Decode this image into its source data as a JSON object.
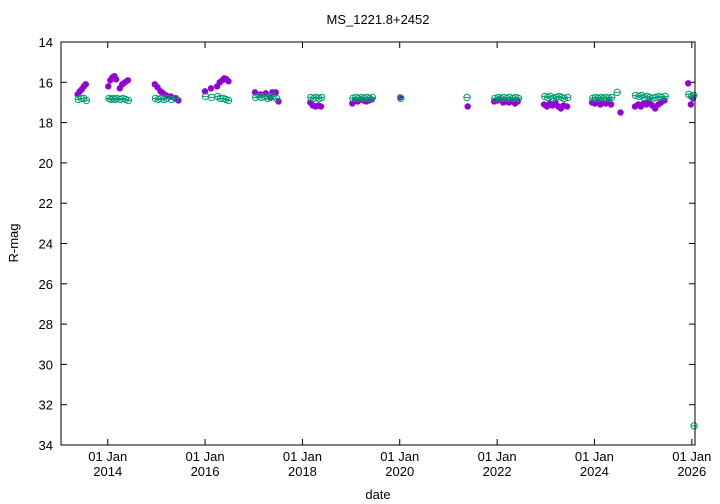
{
  "chart_data": {
    "type": "scatter",
    "title": "MS_1221.8+2452",
    "xlabel": "date",
    "ylabel": "R-mag",
    "xlim": [
      "2013-01-15",
      "2026-01-25"
    ],
    "ylim": [
      14,
      34
    ],
    "y_inverted": true,
    "grid": false,
    "legend": "none",
    "y_ticks": [
      "14",
      "16",
      "18",
      "20",
      "22",
      "24",
      "26",
      "28",
      "30",
      "32",
      "34"
    ],
    "x_ticks": [
      {
        "top": "01 Jan",
        "bottom": "2014",
        "date": "2014-01-01"
      },
      {
        "top": "01 Jan",
        "bottom": "2016",
        "date": "2016-01-01"
      },
      {
        "top": "01 Jan",
        "bottom": "2018",
        "date": "2018-01-01"
      },
      {
        "top": "01 Jan",
        "bottom": "2020",
        "date": "2020-01-01"
      },
      {
        "top": "01 Jan",
        "bottom": "2022",
        "date": "2022-01-01"
      },
      {
        "top": "01 Jan",
        "bottom": "2024",
        "date": "2024-01-01"
      },
      {
        "top": "01 Jan",
        "bottom": "2026",
        "date": "2026-01-01"
      }
    ],
    "series": [
      {
        "marker": "filled-circle",
        "color": "#9400d3",
        "points": [
          [
            "2013-05-20",
            16.6
          ],
          [
            "2013-06-05",
            16.45
          ],
          [
            "2013-06-20",
            16.35
          ],
          [
            "2013-07-05",
            16.2
          ],
          [
            "2013-07-20",
            16.1
          ],
          [
            "2014-01-05",
            16.2
          ],
          [
            "2014-01-20",
            15.9
          ],
          [
            "2014-02-05",
            15.75
          ],
          [
            "2014-02-20",
            15.7
          ],
          [
            "2014-03-05",
            15.85
          ],
          [
            "2014-04-01",
            16.3
          ],
          [
            "2014-04-20",
            16.1
          ],
          [
            "2014-05-10",
            16.0
          ],
          [
            "2014-06-01",
            15.9
          ],
          [
            "2014-12-20",
            16.1
          ],
          [
            "2015-01-10",
            16.25
          ],
          [
            "2015-02-01",
            16.45
          ],
          [
            "2015-02-20",
            16.55
          ],
          [
            "2015-03-15",
            16.65
          ],
          [
            "2015-04-20",
            16.7
          ],
          [
            "2015-05-20",
            16.8
          ],
          [
            "2015-06-15",
            16.9
          ],
          [
            "2016-01-01",
            16.45
          ],
          [
            "2016-02-15",
            16.3
          ],
          [
            "2016-04-01",
            16.2
          ],
          [
            "2016-04-20",
            16.0
          ],
          [
            "2016-05-10",
            15.9
          ],
          [
            "2016-05-25",
            15.8
          ],
          [
            "2016-06-10",
            15.85
          ],
          [
            "2016-06-25",
            15.95
          ],
          [
            "2017-01-10",
            16.5
          ],
          [
            "2017-02-20",
            16.6
          ],
          [
            "2017-04-01",
            16.55
          ],
          [
            "2017-05-01",
            16.75
          ],
          [
            "2017-05-20",
            16.5
          ],
          [
            "2017-06-15",
            16.5
          ],
          [
            "2017-07-05",
            16.95
          ],
          [
            "2018-03-01",
            17.0
          ],
          [
            "2018-03-20",
            17.15
          ],
          [
            "2018-04-10",
            17.2
          ],
          [
            "2018-05-01",
            17.15
          ],
          [
            "2018-05-20",
            17.2
          ],
          [
            "2019-01-10",
            17.05
          ],
          [
            "2019-02-01",
            16.9
          ],
          [
            "2019-02-20",
            16.95
          ],
          [
            "2019-03-15",
            16.85
          ],
          [
            "2019-04-05",
            16.9
          ],
          [
            "2019-04-25",
            16.95
          ],
          [
            "2019-05-15",
            16.9
          ],
          [
            "2019-06-05",
            16.85
          ],
          [
            "2020-01-05",
            16.75
          ],
          [
            "2021-05-25",
            17.2
          ],
          [
            "2021-12-10",
            16.95
          ],
          [
            "2022-01-05",
            16.9
          ],
          [
            "2022-01-25",
            16.85
          ],
          [
            "2022-02-15",
            17.0
          ],
          [
            "2022-03-10",
            16.95
          ],
          [
            "2022-04-01",
            17.0
          ],
          [
            "2022-04-25",
            16.9
          ],
          [
            "2022-05-15",
            17.05
          ],
          [
            "2022-06-05",
            16.95
          ],
          [
            "2022-12-20",
            17.1
          ],
          [
            "2023-01-10",
            17.2
          ],
          [
            "2023-02-01",
            17.05
          ],
          [
            "2023-02-20",
            17.15
          ],
          [
            "2023-03-15",
            17.0
          ],
          [
            "2023-04-05",
            17.2
          ],
          [
            "2023-04-25",
            17.3
          ],
          [
            "2023-05-15",
            17.15
          ],
          [
            "2023-06-10",
            17.2
          ],
          [
            "2023-12-15",
            17.0
          ],
          [
            "2024-01-05",
            17.05
          ],
          [
            "2024-01-25",
            16.95
          ],
          [
            "2024-02-15",
            17.1
          ],
          [
            "2024-03-05",
            17.0
          ],
          [
            "2024-03-25",
            17.05
          ],
          [
            "2024-04-15",
            16.95
          ],
          [
            "2024-05-05",
            17.1
          ],
          [
            "2024-07-15",
            17.5
          ],
          [
            "2024-11-01",
            17.2
          ],
          [
            "2024-11-25",
            17.1
          ],
          [
            "2024-12-15",
            17.2
          ],
          [
            "2025-01-05",
            17.05
          ],
          [
            "2025-01-25",
            17.1
          ],
          [
            "2025-02-15",
            16.95
          ],
          [
            "2025-03-10",
            17.15
          ],
          [
            "2025-04-01",
            17.3
          ],
          [
            "2025-04-25",
            17.1
          ],
          [
            "2025-05-15",
            17.0
          ],
          [
            "2025-06-10",
            16.9
          ],
          [
            "2025-12-05",
            16.05
          ],
          [
            "2025-12-25",
            17.1
          ],
          [
            "2026-01-10",
            16.8
          ]
        ]
      },
      {
        "marker": "open-circle",
        "color": "#009e73",
        "points": [
          [
            "2013-05-25",
            16.85
          ],
          [
            "2013-06-15",
            16.8
          ],
          [
            "2013-07-05",
            16.8
          ],
          [
            "2013-07-25",
            16.9
          ],
          [
            "2014-01-10",
            16.8
          ],
          [
            "2014-01-25",
            16.85
          ],
          [
            "2014-02-10",
            16.8
          ],
          [
            "2014-02-25",
            16.85
          ],
          [
            "2014-03-10",
            16.8
          ],
          [
            "2014-04-05",
            16.85
          ],
          [
            "2014-04-25",
            16.8
          ],
          [
            "2014-05-15",
            16.85
          ],
          [
            "2014-06-05",
            16.9
          ],
          [
            "2014-12-25",
            16.8
          ],
          [
            "2015-01-15",
            16.85
          ],
          [
            "2015-02-05",
            16.8
          ],
          [
            "2015-02-25",
            16.85
          ],
          [
            "2015-03-20",
            16.8
          ],
          [
            "2015-04-25",
            16.85
          ],
          [
            "2015-05-25",
            16.8
          ],
          [
            "2016-01-05",
            16.7
          ],
          [
            "2016-02-20",
            16.75
          ],
          [
            "2016-04-05",
            16.7
          ],
          [
            "2016-04-25",
            16.8
          ],
          [
            "2016-05-15",
            16.8
          ],
          [
            "2016-06-05",
            16.85
          ],
          [
            "2016-06-25",
            16.9
          ],
          [
            "2017-01-15",
            16.75
          ],
          [
            "2017-02-10",
            16.7
          ],
          [
            "2017-03-01",
            16.75
          ],
          [
            "2017-03-25",
            16.7
          ],
          [
            "2017-04-15",
            16.8
          ],
          [
            "2017-05-05",
            16.75
          ],
          [
            "2017-05-25",
            16.7
          ],
          [
            "2017-06-20",
            16.8
          ],
          [
            "2018-03-05",
            16.75
          ],
          [
            "2018-03-25",
            16.8
          ],
          [
            "2018-04-15",
            16.75
          ],
          [
            "2018-05-05",
            16.8
          ],
          [
            "2018-05-25",
            16.75
          ],
          [
            "2019-01-15",
            16.8
          ],
          [
            "2019-02-05",
            16.75
          ],
          [
            "2019-02-25",
            16.8
          ],
          [
            "2019-03-20",
            16.75
          ],
          [
            "2019-04-10",
            16.8
          ],
          [
            "2019-04-30",
            16.75
          ],
          [
            "2019-05-20",
            16.8
          ],
          [
            "2019-06-10",
            16.75
          ],
          [
            "2020-01-10",
            16.8
          ],
          [
            "2021-05-20",
            16.75
          ],
          [
            "2021-12-15",
            16.8
          ],
          [
            "2022-01-10",
            16.75
          ],
          [
            "2022-01-30",
            16.8
          ],
          [
            "2022-02-20",
            16.75
          ],
          [
            "2022-03-15",
            16.8
          ],
          [
            "2022-04-05",
            16.75
          ],
          [
            "2022-04-30",
            16.8
          ],
          [
            "2022-05-20",
            16.75
          ],
          [
            "2022-06-10",
            16.8
          ],
          [
            "2022-12-25",
            16.7
          ],
          [
            "2023-01-15",
            16.75
          ],
          [
            "2023-02-05",
            16.7
          ],
          [
            "2023-02-25",
            16.8
          ],
          [
            "2023-03-20",
            16.75
          ],
          [
            "2023-04-10",
            16.7
          ],
          [
            "2023-04-30",
            16.75
          ],
          [
            "2023-05-20",
            16.8
          ],
          [
            "2023-06-15",
            16.75
          ],
          [
            "2023-12-20",
            16.8
          ],
          [
            "2024-01-10",
            16.75
          ],
          [
            "2024-01-30",
            16.8
          ],
          [
            "2024-02-20",
            16.75
          ],
          [
            "2024-03-10",
            16.8
          ],
          [
            "2024-03-30",
            16.75
          ],
          [
            "2024-04-20",
            16.8
          ],
          [
            "2024-05-10",
            16.75
          ],
          [
            "2024-06-20",
            16.5
          ],
          [
            "2024-11-05",
            16.65
          ],
          [
            "2024-11-30",
            16.7
          ],
          [
            "2024-12-20",
            16.65
          ],
          [
            "2025-01-10",
            16.75
          ],
          [
            "2025-01-30",
            16.7
          ],
          [
            "2025-02-20",
            16.75
          ],
          [
            "2025-03-15",
            16.8
          ],
          [
            "2025-04-05",
            16.75
          ],
          [
            "2025-04-30",
            16.7
          ],
          [
            "2025-05-20",
            16.75
          ],
          [
            "2025-06-15",
            16.7
          ],
          [
            "2025-12-10",
            16.6
          ],
          [
            "2025-12-30",
            16.7
          ],
          [
            "2026-01-15",
            16.65
          ],
          [
            "2026-01-18",
            33.05
          ]
        ]
      }
    ]
  }
}
